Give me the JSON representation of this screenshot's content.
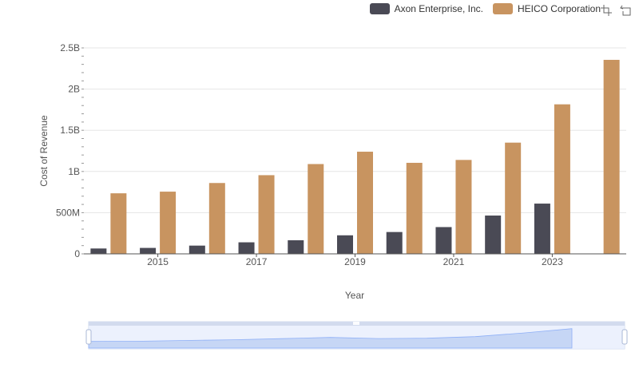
{
  "legend": {
    "items": [
      {
        "label": "Axon Enterprise, Inc.",
        "color": "#4a4a55"
      },
      {
        "label": "HEICO Corporation",
        "color": "#c89460"
      }
    ]
  },
  "toolbox": {
    "icons": [
      "zoom-icon",
      "restore-icon"
    ]
  },
  "chart_data": {
    "type": "bar",
    "xlabel": "Year",
    "ylabel": "Cost of Revenue",
    "categories": [
      "2014",
      "2015",
      "2016",
      "2017",
      "2018",
      "2019",
      "2020",
      "2021",
      "2022",
      "2023",
      "2024"
    ],
    "x_tick_labels": [
      "2015",
      "2017",
      "2019",
      "2021",
      "2023"
    ],
    "y_tick_labels": [
      "0",
      "500M",
      "1B",
      "1.5B",
      "2B",
      "2.5B"
    ],
    "y_tick_values": [
      0,
      500000000,
      1000000000,
      1500000000,
      2000000000,
      2500000000
    ],
    "ylim": [
      0,
      2500000000
    ],
    "grid": true,
    "legend_position": "top-right",
    "series": [
      {
        "name": "Axon Enterprise, Inc.",
        "color": "#4a4a55",
        "values": [
          65000000,
          72000000,
          100000000,
          140000000,
          165000000,
          225000000,
          265000000,
          325000000,
          465000000,
          610000000,
          null
        ]
      },
      {
        "name": "HEICO Corporation",
        "color": "#c89460",
        "values": [
          735000000,
          755000000,
          860000000,
          955000000,
          1090000000,
          1240000000,
          1105000000,
          1140000000,
          1350000000,
          1815000000,
          2355000000
        ]
      }
    ]
  }
}
